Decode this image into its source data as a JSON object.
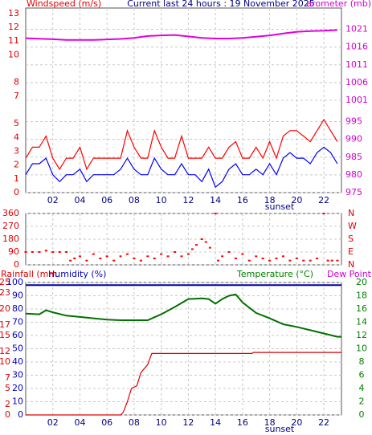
{
  "chart_data": [
    {
      "type": "line",
      "title": "Current last 24 hours : 19 November 2025",
      "ylabel": "Windspeed (m/s)",
      "y2label": "arometer (mb)",
      "annotation": "sunset",
      "xlim": [
        0,
        23.3
      ],
      "xticks": [
        {
          "value": 2,
          "label": "02"
        },
        {
          "value": 4,
          "label": "04"
        },
        {
          "value": 6,
          "label": "06"
        },
        {
          "value": 8,
          "label": "08"
        },
        10,
        12,
        14,
        16,
        18,
        20,
        22
      ],
      "ylim": [
        0,
        13.4
      ],
      "yticks": [
        0,
        1,
        2,
        3,
        4,
        5,
        7,
        8,
        10,
        11,
        12,
        13
      ],
      "y2lim": [
        975,
        1027
      ],
      "y2ticks": [
        975,
        980,
        985,
        990,
        995,
        1001,
        1006,
        1011,
        1016,
        1021
      ],
      "series": [
        {
          "color": "#ff0000",
          "x": [
            0,
            0.5,
            1,
            1.5,
            2,
            2.5,
            3,
            3.5,
            4,
            4.5,
            5,
            5.5,
            6,
            6.5,
            7,
            7.5,
            8,
            8.5,
            9,
            9.5,
            10,
            10.5,
            11,
            11.5,
            12,
            12.5,
            13,
            13.5,
            14,
            14.5,
            15,
            15.5,
            16,
            16.5,
            17,
            17.5,
            18,
            18.5,
            19,
            19.5,
            20,
            20.5,
            21,
            21.5,
            22,
            22.5,
            23
          ],
          "values": [
            2.5,
            3.3,
            3.3,
            4.1,
            2.5,
            1.7,
            2.5,
            2.5,
            3.3,
            1.7,
            2.5,
            2.5,
            2.5,
            2.5,
            2.5,
            4.5,
            3.3,
            2.5,
            2.5,
            4.5,
            3.3,
            2.5,
            2.5,
            4.1,
            2.5,
            2.5,
            2.5,
            3.3,
            2.5,
            2.5,
            3.3,
            3.7,
            2.5,
            2.5,
            3.3,
            2.5,
            3.7,
            2.5,
            4.1,
            4.5,
            4.5,
            4.1,
            3.7,
            4.5,
            5.3,
            4.5,
            3.7
          ]
        },
        {
          "color": "#0000ff",
          "x": [
            0,
            0.5,
            1,
            1.5,
            2,
            2.5,
            3,
            3.5,
            4,
            4.5,
            5,
            5.5,
            6,
            6.5,
            7,
            7.5,
            8,
            8.5,
            9,
            9.5,
            10,
            10.5,
            11,
            11.5,
            12,
            12.5,
            13,
            13.5,
            14,
            14.5,
            15,
            15.5,
            16,
            16.5,
            17,
            17.5,
            18,
            18.5,
            19,
            19.5,
            20,
            20.5,
            21,
            21.5,
            22,
            22.5,
            23
          ],
          "values": [
            1.3,
            2.1,
            2.1,
            2.5,
            1.3,
            0.8,
            1.3,
            1.3,
            1.7,
            0.8,
            1.3,
            1.3,
            1.3,
            1.3,
            1.7,
            2.5,
            1.7,
            1.3,
            1.3,
            2.5,
            1.7,
            1.3,
            1.3,
            2.1,
            1.3,
            1.3,
            0.8,
            1.7,
            0.4,
            0.8,
            1.7,
            2.1,
            1.3,
            1.3,
            1.7,
            1.3,
            2.1,
            1.3,
            2.5,
            2.9,
            2.5,
            2.5,
            2.1,
            2.9,
            3.3,
            2.9,
            2.1
          ]
        },
        {
          "color": "#e000e0",
          "axis": "y2",
          "x": [
            0,
            2,
            3,
            5,
            7,
            8,
            9,
            10,
            11,
            12,
            13,
            14,
            15,
            16,
            17,
            18,
            19,
            20,
            21,
            22,
            23
          ],
          "values": [
            1018.5,
            1018.2,
            1018,
            1018,
            1018.3,
            1018.6,
            1019.1,
            1019.3,
            1019.4,
            1019,
            1018.6,
            1018.4,
            1018.4,
            1018.6,
            1018.9,
            1019.3,
            1019.8,
            1020.3,
            1020.5,
            1020.6,
            1020.8
          ]
        }
      ]
    },
    {
      "type": "scatter",
      "xlim": [
        0,
        23.3
      ],
      "ylim": [
        0,
        360
      ],
      "yticks": [
        0,
        90,
        180,
        270,
        360
      ],
      "y2lim": [
        0,
        360
      ],
      "y2ticks": [
        {
          "value": 0,
          "label": "N"
        },
        {
          "value": 90,
          "label": "E"
        },
        {
          "value": 180,
          "label": "S"
        },
        {
          "value": 270,
          "label": "W"
        },
        {
          "value": 360,
          "label": "N"
        }
      ],
      "series": [
        {
          "color": "#ff0000",
          "x": [
            0,
            0.5,
            1,
            1.5,
            2,
            2.5,
            3,
            3.3,
            3.6,
            4,
            4.5,
            5,
            5.5,
            6,
            6.5,
            7,
            7.5,
            8,
            8.5,
            9,
            9.5,
            10,
            10.5,
            11,
            11.5,
            12,
            12.3,
            12.6,
            13,
            13.3,
            13.6,
            14,
            14.2,
            14.5,
            15,
            15.5,
            16,
            16.5,
            17,
            17.5,
            18,
            18.5,
            19,
            19.5,
            20,
            20.5,
            21,
            21.5,
            22,
            22.3,
            22.6,
            23
          ],
          "values": [
            90,
            90,
            90,
            100,
            90,
            90,
            90,
            30,
            45,
            60,
            30,
            75,
            45,
            60,
            30,
            60,
            75,
            45,
            30,
            60,
            45,
            75,
            60,
            90,
            60,
            75,
            110,
            140,
            180,
            160,
            120,
            360,
            30,
            60,
            90,
            45,
            75,
            30,
            60,
            45,
            30,
            45,
            60,
            30,
            45,
            30,
            30,
            45,
            360,
            30,
            30,
            30
          ]
        }
      ]
    },
    {
      "type": "line",
      "ylabel": "Rainfall (mm",
      "y3label": "Humidity (%)",
      "y2label": "Temperature (°C)",
      "dewlabel": "Dew Point",
      "annotation": "sunset",
      "xlim": [
        0,
        23.3
      ],
      "xticks": [
        {
          "value": 2,
          "label": "02"
        },
        {
          "value": 4,
          "label": "04"
        },
        {
          "value": 6,
          "label": "06"
        },
        {
          "value": 8,
          "label": "08"
        },
        10,
        12,
        14,
        16,
        18,
        20,
        22
      ],
      "ylim": [
        0,
        25
      ],
      "yticks": [
        0,
        2,
        5,
        7,
        10,
        12,
        15,
        17,
        20,
        23,
        25
      ],
      "y3lim": [
        0,
        100
      ],
      "y3ticks": [
        0,
        10,
        20,
        30,
        40,
        50,
        60,
        70,
        80,
        90,
        100
      ],
      "y2lim": [
        0,
        20
      ],
      "y2ticks": [
        0,
        2,
        4,
        6,
        8,
        10,
        12,
        14,
        16,
        18,
        20
      ],
      "series": [
        {
          "color": "#000099",
          "axis": "y3",
          "x": [
            0,
            23.3
          ],
          "values": [
            98,
            98
          ]
        },
        {
          "color": "#007000",
          "axis": "y2",
          "x": [
            0,
            1,
            1.5,
            2,
            3,
            4,
            5,
            6,
            7,
            8,
            9,
            10,
            11,
            12,
            13,
            13.5,
            14,
            14.5,
            15,
            15.5,
            16,
            17,
            18,
            19,
            20,
            21,
            22,
            23,
            23.3
          ],
          "values": [
            15.3,
            15.2,
            15.8,
            15.5,
            15,
            14.8,
            14.6,
            14.4,
            14.3,
            14.3,
            14.3,
            15.2,
            16.3,
            17.5,
            17.6,
            17.5,
            16.8,
            17.5,
            18,
            18.2,
            17,
            15.4,
            14.6,
            13.7,
            13.3,
            12.8,
            12.3,
            11.8,
            11.8
          ]
        },
        {
          "color": "#e00000",
          "x": [
            0,
            7,
            7.2,
            7.5,
            7.8,
            8.2,
            8.5,
            9,
            9.3,
            16.7,
            16.8,
            23.3
          ],
          "values": [
            0,
            0,
            0.5,
            2.5,
            5,
            5.5,
            8,
            9.5,
            11.6,
            11.6,
            11.8,
            11.8
          ]
        }
      ]
    }
  ]
}
